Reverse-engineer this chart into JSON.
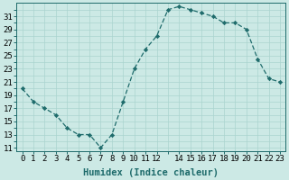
{
  "x": [
    0,
    1,
    2,
    3,
    4,
    5,
    6,
    7,
    8,
    9,
    10,
    11,
    12,
    13,
    14,
    15,
    16,
    17,
    18,
    19,
    20,
    21,
    22,
    23
  ],
  "y": [
    20,
    18,
    17,
    16,
    14,
    13,
    13,
    11,
    13,
    18,
    23,
    26,
    28,
    32,
    32.5,
    32,
    31.5,
    31,
    30,
    30,
    29,
    24.5,
    21.5,
    21
  ],
  "line_color": "#1e6b6b",
  "marker": "D",
  "marker_size": 2.2,
  "bg_color": "#cce9e5",
  "grid_color": "#aad4cf",
  "xlabel": "Humidex (Indice chaleur)",
  "xlabel_fontsize": 7.5,
  "ylim": [
    10.5,
    33
  ],
  "xlim": [
    -0.5,
    23.5
  ],
  "yticks": [
    11,
    13,
    15,
    17,
    19,
    21,
    23,
    25,
    27,
    29,
    31
  ],
  "xticks": [
    0,
    1,
    2,
    3,
    4,
    5,
    6,
    7,
    8,
    9,
    10,
    11,
    12,
    14,
    15,
    16,
    17,
    18,
    19,
    20,
    21,
    22,
    23
  ],
  "tick_fontsize": 6.5,
  "linewidth": 0.9
}
